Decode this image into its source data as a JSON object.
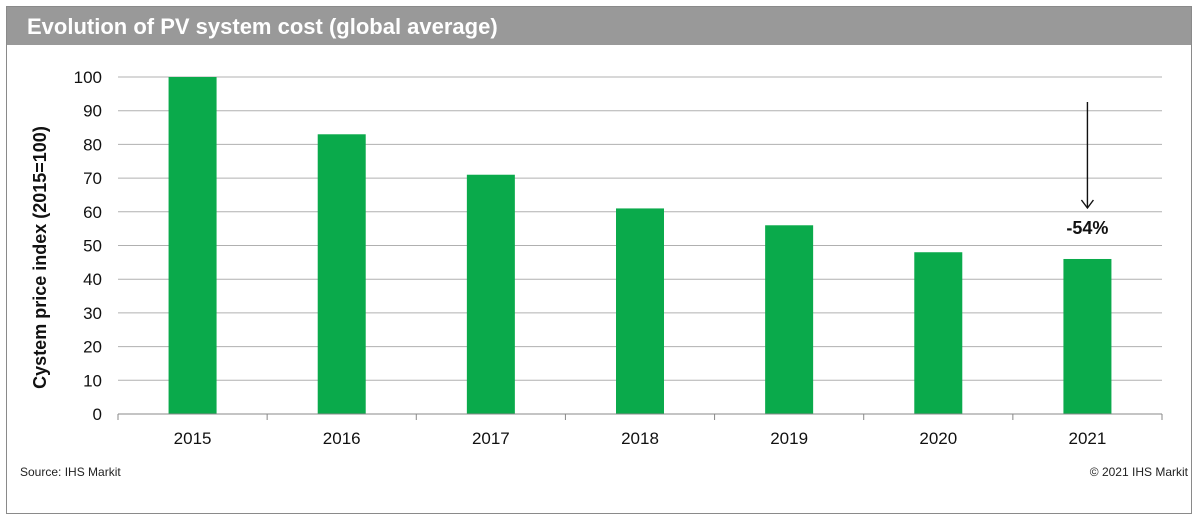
{
  "header": {
    "title": "Evolution of PV system cost (global average)"
  },
  "footer": {
    "source": "Source: IHS Markit",
    "copyright": "© 2021 IHS Markit"
  },
  "colors": {
    "bar": "#0aaa4b",
    "title_bg": "#999999",
    "grid": "#b0b0b0"
  },
  "chart_data": {
    "type": "bar",
    "title": "Evolution of PV system cost (global average)",
    "xlabel": "",
    "ylabel": "Cystem price index  (2015=100)",
    "ylim": [
      0,
      100
    ],
    "yticks": [
      0,
      10,
      20,
      30,
      40,
      50,
      60,
      70,
      80,
      90,
      100
    ],
    "grid": true,
    "categories": [
      "2015",
      "2016",
      "2017",
      "2018",
      "2019",
      "2020",
      "2021"
    ],
    "values": [
      100,
      83,
      71,
      61,
      56,
      48,
      46
    ],
    "annotations": [
      {
        "text": "-54%",
        "category": "2021",
        "arrow": "down"
      }
    ]
  }
}
